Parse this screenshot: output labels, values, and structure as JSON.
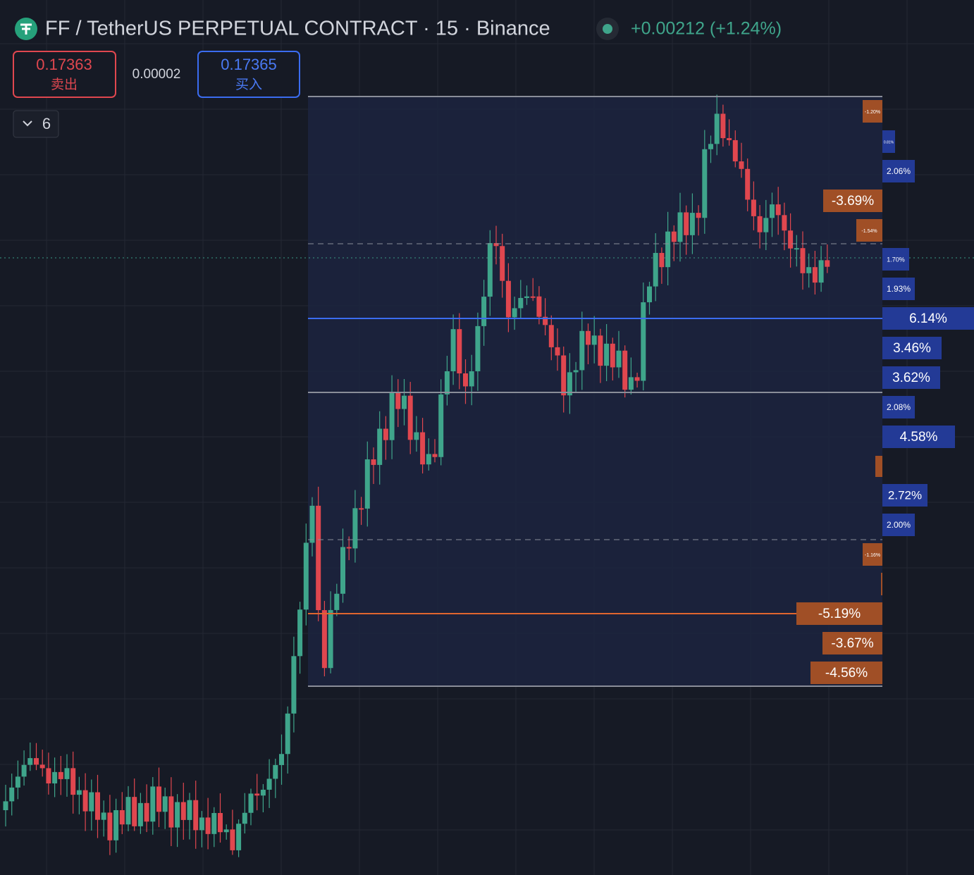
{
  "header": {
    "title": "FF / TetherUS PERPETUAL CONTRACT · 15 · Binance",
    "change": "+0.00212 (+1.24%)"
  },
  "order": {
    "sell_price": "0.17363",
    "sell_label": "卖出",
    "spread": "0.00002",
    "buy_price": "0.17365",
    "buy_label": "买入"
  },
  "indicators": {
    "count": "6"
  },
  "labels": [
    {
      "text": "-1.20%",
      "kind": "loss"
    },
    {
      "text": "0.81%",
      "kind": "gain"
    },
    {
      "text": "2.06%",
      "kind": "gain"
    },
    {
      "text": "-3.69%",
      "kind": "loss"
    },
    {
      "text": "-1.54%",
      "kind": "loss"
    },
    {
      "text": "1.70%",
      "kind": "gain"
    },
    {
      "text": "1.93%",
      "kind": "gain"
    },
    {
      "text": "6.14%",
      "kind": "gain"
    },
    {
      "text": "3.46%",
      "kind": "gain"
    },
    {
      "text": "3.62%",
      "kind": "gain"
    },
    {
      "text": "2.08%",
      "kind": "gain"
    },
    {
      "text": "4.58%",
      "kind": "gain"
    },
    {
      "text": "2.72%",
      "kind": "gain"
    },
    {
      "text": "2.00%",
      "kind": "gain"
    },
    {
      "text": "-1.16%",
      "kind": "loss"
    },
    {
      "text": "-5.19%",
      "kind": "loss"
    },
    {
      "text": "-3.67%",
      "kind": "loss"
    },
    {
      "text": "-4.56%",
      "kind": "loss"
    }
  ]
}
